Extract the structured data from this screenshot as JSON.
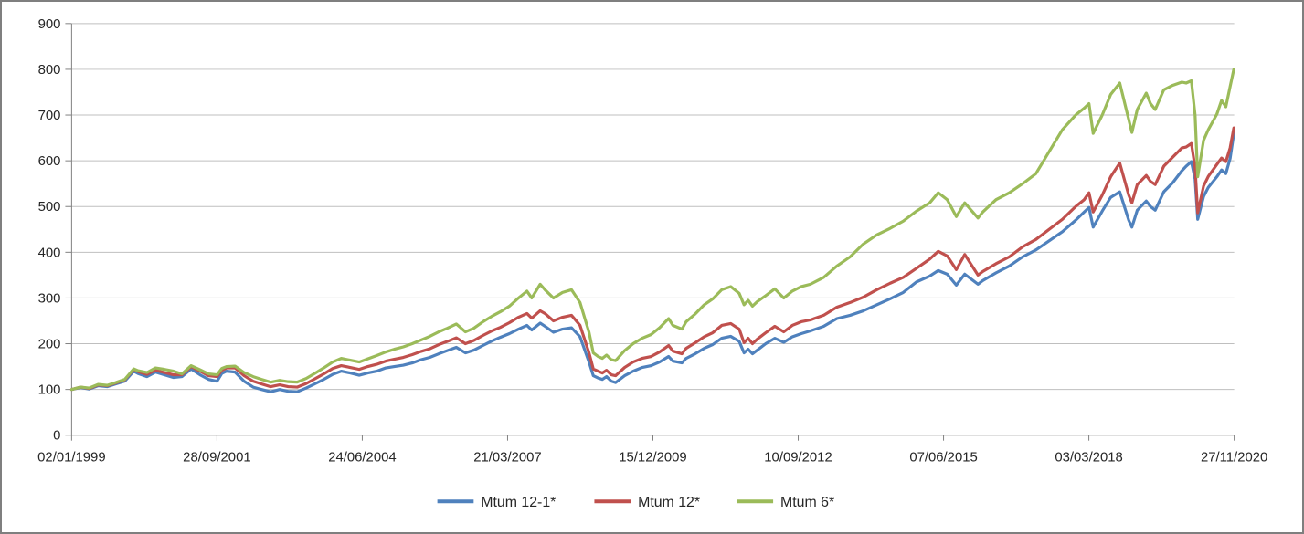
{
  "chart_data": {
    "type": "line",
    "title": "",
    "xlabel": "",
    "ylabel": "",
    "ylim": [
      0,
      900
    ],
    "y_tick_step": 100,
    "y_ticks": [
      0,
      100,
      200,
      300,
      400,
      500,
      600,
      700,
      800,
      900
    ],
    "x_tick_labels": [
      "02/01/1999",
      "28/09/2001",
      "24/06/2004",
      "21/03/2007",
      "15/12/2009",
      "10/09/2012",
      "07/06/2015",
      "03/03/2018",
      "27/11/2020"
    ],
    "x_range_years": [
      1999.0,
      2020.907
    ],
    "grid": "horizontal",
    "legend_position": "bottom-center",
    "axis_color": "#808080",
    "gridline_color": "#bfbfbf",
    "text_color": "#262626",
    "frame_border_color": "#7f7f7f",
    "x_years": [
      1999.0,
      1999.17,
      1999.33,
      1999.5,
      1999.67,
      1999.83,
      2000.0,
      2000.17,
      2000.25,
      2000.42,
      2000.58,
      2000.75,
      2000.92,
      2001.08,
      2001.25,
      2001.42,
      2001.58,
      2001.74,
      2001.83,
      2001.92,
      2002.08,
      2002.25,
      2002.42,
      2002.58,
      2002.75,
      2002.92,
      2003.08,
      2003.25,
      2003.42,
      2003.58,
      2003.75,
      2003.92,
      2004.08,
      2004.25,
      2004.42,
      2004.58,
      2004.75,
      2004.92,
      2005.08,
      2005.25,
      2005.42,
      2005.58,
      2005.75,
      2005.92,
      2006.08,
      2006.25,
      2006.42,
      2006.58,
      2006.75,
      2006.92,
      2007.08,
      2007.25,
      2007.42,
      2007.58,
      2007.67,
      2007.83,
      2007.92,
      2008.08,
      2008.25,
      2008.42,
      2008.58,
      2008.75,
      2008.83,
      2008.92,
      2009.0,
      2009.08,
      2009.17,
      2009.25,
      2009.42,
      2009.58,
      2009.75,
      2009.92,
      2010.08,
      2010.25,
      2010.33,
      2010.5,
      2010.58,
      2010.75,
      2010.92,
      2011.08,
      2011.25,
      2011.42,
      2011.58,
      2011.67,
      2011.75,
      2011.83,
      2011.92,
      2012.08,
      2012.25,
      2012.42,
      2012.58,
      2012.75,
      2012.92,
      2013.17,
      2013.42,
      2013.67,
      2013.92,
      2014.17,
      2014.42,
      2014.67,
      2014.92,
      2015.17,
      2015.33,
      2015.5,
      2015.67,
      2015.83,
      2016.08,
      2016.17,
      2016.42,
      2016.67,
      2016.92,
      2017.17,
      2017.42,
      2017.67,
      2017.92,
      2018.08,
      2018.17,
      2018.25,
      2018.42,
      2018.58,
      2018.75,
      2018.92,
      2018.98,
      2019.08,
      2019.25,
      2019.33,
      2019.42,
      2019.58,
      2019.75,
      2019.92,
      2020.0,
      2020.1,
      2020.17,
      2020.22,
      2020.33,
      2020.42,
      2020.58,
      2020.67,
      2020.75,
      2020.83,
      2020.9
    ],
    "series": [
      {
        "name": "Mtum 12-1*",
        "color": "#4F81BD",
        "values": [
          100,
          104,
          101,
          108,
          106,
          112,
          118,
          140,
          135,
          128,
          138,
          132,
          126,
          128,
          145,
          132,
          122,
          118,
          135,
          140,
          138,
          118,
          105,
          100,
          95,
          100,
          96,
          95,
          103,
          112,
          122,
          133,
          140,
          136,
          131,
          136,
          140,
          147,
          150,
          153,
          158,
          165,
          170,
          178,
          185,
          192,
          180,
          186,
          196,
          206,
          214,
          222,
          232,
          240,
          230,
          245,
          238,
          225,
          232,
          235,
          215,
          160,
          130,
          125,
          122,
          128,
          118,
          115,
          130,
          140,
          148,
          152,
          160,
          172,
          162,
          158,
          168,
          178,
          190,
          198,
          212,
          216,
          205,
          180,
          188,
          178,
          186,
          200,
          212,
          203,
          215,
          222,
          228,
          238,
          255,
          262,
          272,
          285,
          298,
          312,
          335,
          348,
          360,
          352,
          328,
          352,
          330,
          338,
          355,
          370,
          390,
          405,
          425,
          445,
          470,
          488,
          498,
          455,
          490,
          520,
          532,
          470,
          455,
          492,
          512,
          500,
          492,
          532,
          552,
          578,
          588,
          598,
          560,
          472,
          522,
          542,
          565,
          580,
          572,
          605,
          660
        ]
      },
      {
        "name": "Mtum 12*",
        "color": "#C0504D",
        "values": [
          100,
          105,
          102,
          110,
          108,
          114,
          121,
          144,
          139,
          133,
          142,
          137,
          132,
          132,
          150,
          140,
          130,
          128,
          142,
          147,
          147,
          130,
          118,
          112,
          106,
          110,
          106,
          105,
          113,
          123,
          134,
          146,
          152,
          148,
          144,
          150,
          155,
          162,
          166,
          170,
          176,
          183,
          189,
          198,
          205,
          213,
          200,
          207,
          218,
          228,
          236,
          246,
          258,
          266,
          256,
          272,
          266,
          250,
          258,
          262,
          240,
          180,
          145,
          140,
          136,
          142,
          132,
          130,
          148,
          160,
          168,
          172,
          182,
          196,
          184,
          178,
          190,
          202,
          215,
          224,
          240,
          244,
          232,
          202,
          212,
          200,
          210,
          224,
          238,
          226,
          240,
          248,
          252,
          262,
          280,
          290,
          302,
          318,
          332,
          345,
          365,
          385,
          402,
          392,
          362,
          395,
          350,
          358,
          375,
          390,
          412,
          428,
          450,
          472,
          500,
          515,
          530,
          488,
          525,
          565,
          595,
          525,
          508,
          548,
          568,
          555,
          548,
          588,
          608,
          628,
          630,
          638,
          585,
          486,
          545,
          566,
          592,
          606,
          598,
          628,
          672
        ]
      },
      {
        "name": "Mtum  6*",
        "color": "#9BBB59",
        "values": [
          100,
          105,
          103,
          111,
          109,
          115,
          122,
          145,
          141,
          137,
          147,
          144,
          140,
          134,
          152,
          143,
          134,
          132,
          146,
          150,
          151,
          137,
          128,
          122,
          116,
          120,
          117,
          116,
          124,
          135,
          147,
          160,
          168,
          164,
          160,
          167,
          174,
          182,
          188,
          193,
          200,
          208,
          216,
          226,
          234,
          243,
          226,
          234,
          248,
          260,
          270,
          282,
          300,
          315,
          300,
          330,
          318,
          300,
          312,
          318,
          290,
          225,
          180,
          172,
          168,
          175,
          165,
          163,
          185,
          200,
          212,
          220,
          235,
          255,
          240,
          232,
          248,
          265,
          285,
          298,
          318,
          325,
          310,
          285,
          295,
          282,
          292,
          305,
          320,
          300,
          315,
          325,
          330,
          345,
          370,
          390,
          418,
          438,
          452,
          468,
          490,
          508,
          530,
          515,
          478,
          508,
          475,
          488,
          515,
          530,
          550,
          572,
          620,
          668,
          700,
          715,
          725,
          660,
          700,
          745,
          770,
          690,
          662,
          712,
          748,
          725,
          712,
          755,
          765,
          772,
          770,
          775,
          700,
          565,
          645,
          668,
          702,
          732,
          718,
          762,
          800
        ]
      }
    ]
  }
}
